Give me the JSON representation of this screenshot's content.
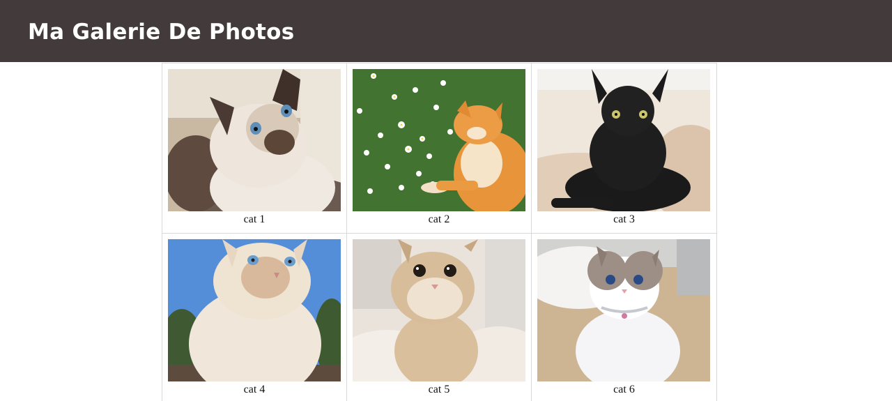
{
  "header": {
    "title": "Ma Galerie De Photos"
  },
  "gallery": {
    "items": [
      {
        "caption": "cat 1"
      },
      {
        "caption": "cat 2"
      },
      {
        "caption": "cat 3"
      },
      {
        "caption": "cat 4"
      },
      {
        "caption": "cat 5"
      },
      {
        "caption": "cat 6"
      }
    ]
  },
  "colors": {
    "header_bg": "#433b3b",
    "header_text": "#ffffff",
    "cell_border": "#d8d8d8"
  }
}
